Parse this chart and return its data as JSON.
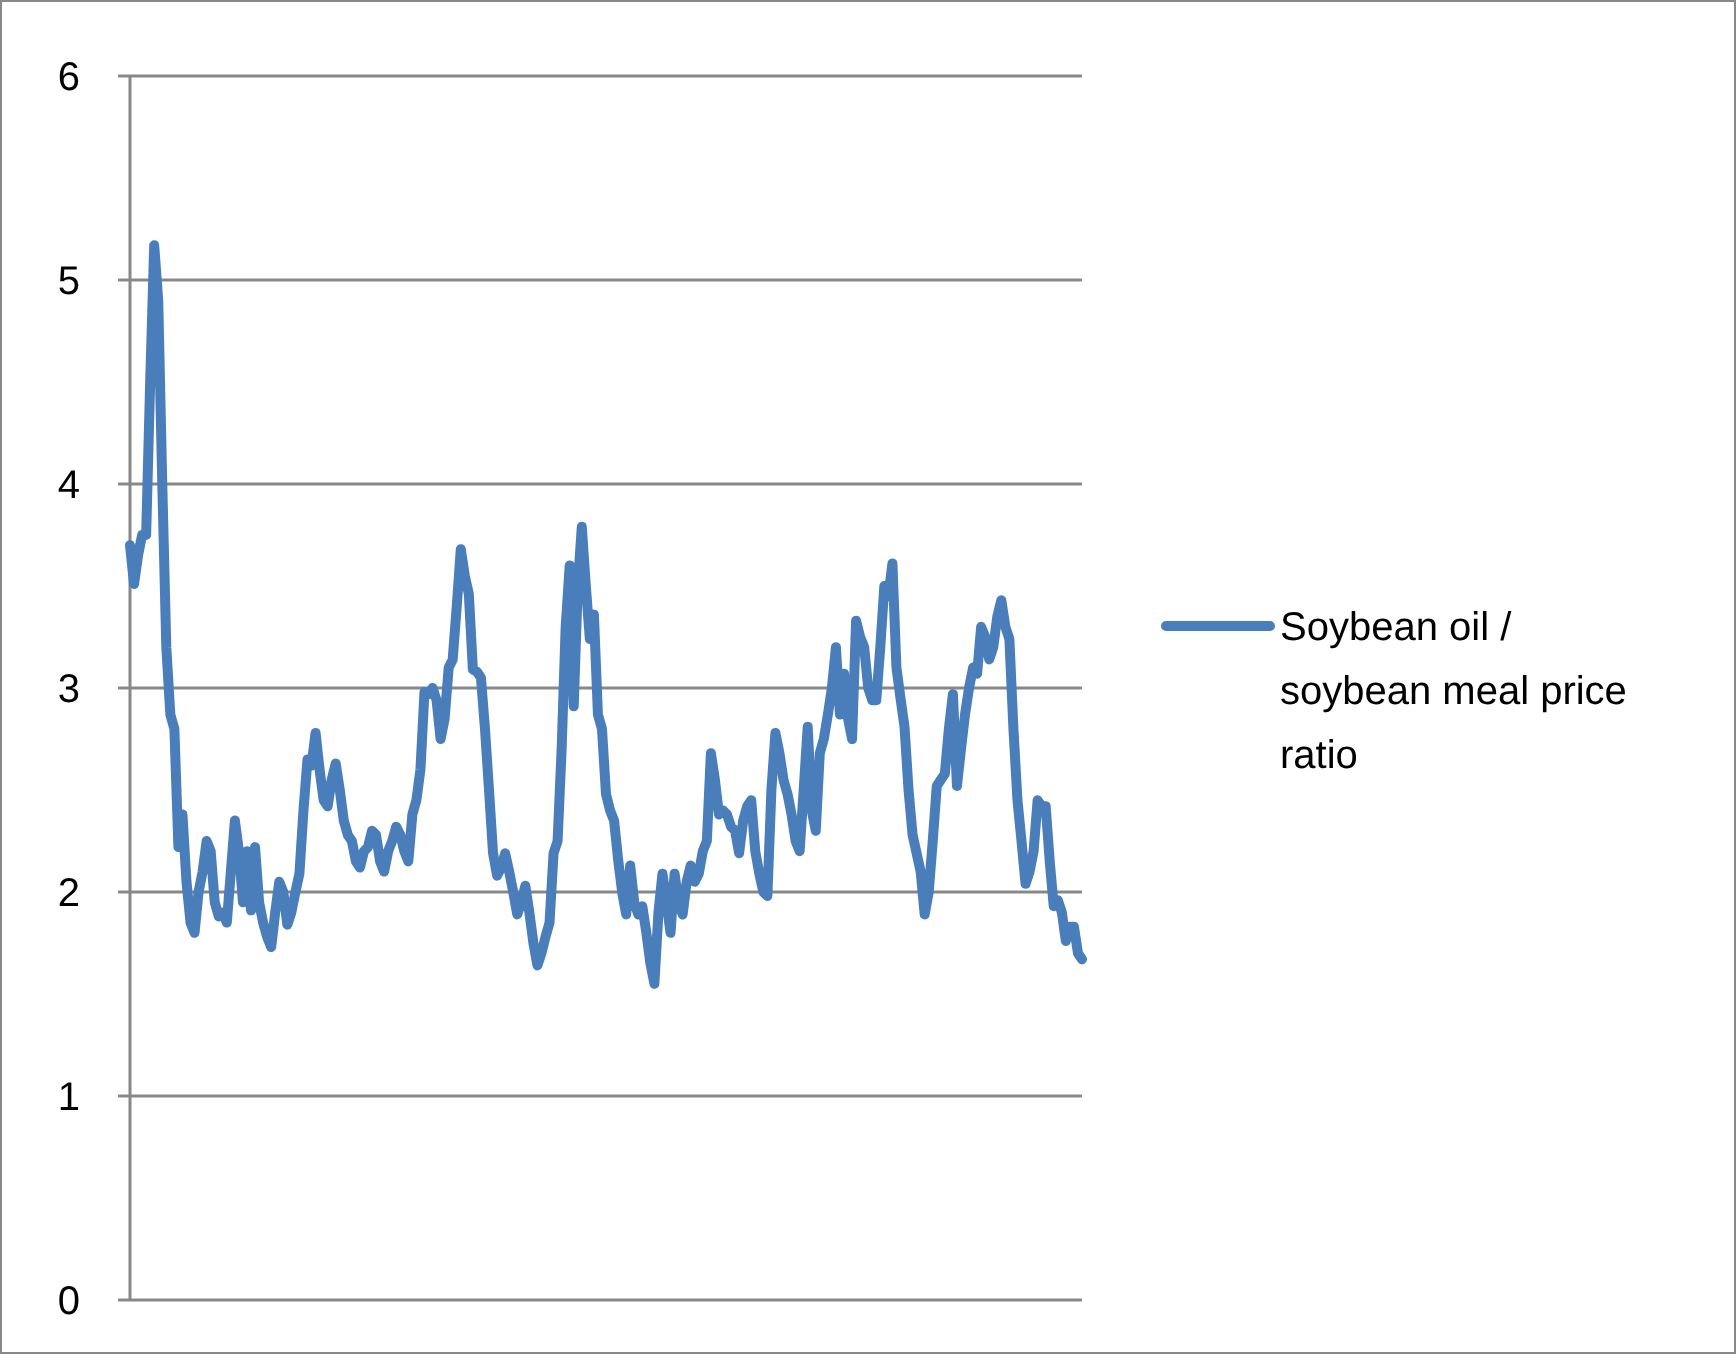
{
  "chart_data": {
    "type": "line",
    "ylim": [
      0,
      6
    ],
    "yticks": [
      0,
      1,
      2,
      3,
      4,
      5,
      6
    ],
    "grid": "y",
    "legend": "right",
    "marker": "none",
    "line_style": "solid",
    "categories": [
      null,
      null,
      null,
      null,
      null,
      null,
      null,
      null,
      null,
      null,
      null,
      null,
      null,
      null,
      null,
      null,
      null,
      null,
      null,
      null,
      null,
      null,
      null,
      null,
      null,
      null,
      null,
      null,
      null,
      null,
      null,
      null,
      null,
      null,
      null,
      null,
      null,
      null,
      null,
      null,
      null,
      null,
      null,
      null,
      null,
      null,
      null,
      null,
      null,
      null,
      null,
      null,
      null,
      null,
      null,
      null,
      null,
      null,
      null,
      null,
      null,
      null,
      null,
      null,
      null,
      null,
      null,
      null,
      null,
      null,
      null,
      null,
      null,
      null,
      null,
      null,
      null,
      null,
      null,
      null,
      null,
      null,
      null,
      null,
      null,
      null,
      null,
      null,
      null,
      null,
      null,
      null,
      null,
      null,
      null,
      null,
      null,
      null,
      null,
      null,
      null,
      null,
      null,
      null,
      null,
      null,
      null,
      null,
      null,
      null,
      null,
      null,
      null,
      null,
      null,
      null,
      null,
      null,
      null,
      null,
      null,
      null,
      null,
      null,
      null,
      null,
      null,
      null,
      null,
      null,
      null,
      null,
      null,
      null,
      null,
      null,
      null,
      null,
      null,
      null,
      null,
      null,
      null,
      null,
      null,
      null,
      null,
      null,
      null,
      null,
      null,
      null,
      null,
      null,
      null,
      null,
      null,
      null,
      null,
      null,
      null,
      null,
      null,
      null,
      null,
      null,
      null,
      null,
      null,
      null,
      null,
      null,
      null,
      null,
      null,
      null,
      null,
      null,
      null,
      null,
      null,
      null,
      null,
      null,
      null,
      null,
      null,
      null,
      null,
      null,
      null,
      null,
      null,
      null,
      null,
      null,
      null,
      null,
      null,
      null,
      null,
      null,
      null,
      null,
      null,
      null,
      null,
      null,
      null,
      null,
      null,
      null,
      null,
      null,
      null,
      null,
      null,
      null,
      null,
      null,
      null,
      null,
      null,
      null,
      null,
      null,
      null,
      null,
      null,
      null,
      null,
      null,
      null,
      null,
      null,
      null,
      null
    ],
    "series": [
      {
        "name": "Soybean oil / soybean meal price ratio",
        "color": "#4a7ebb",
        "values": [
          3.7,
          3.51,
          3.65,
          3.75,
          3.75,
          4.5,
          5.17,
          4.9,
          4.0,
          3.2,
          2.87,
          2.8,
          2.22,
          2.38,
          2.05,
          1.85,
          1.8,
          2.0,
          2.1,
          2.25,
          2.2,
          1.95,
          1.88,
          1.9,
          1.85,
          2.1,
          2.35,
          2.2,
          1.95,
          2.2,
          1.91,
          2.22,
          1.95,
          1.85,
          1.78,
          1.73,
          1.9,
          2.05,
          2.0,
          1.84,
          1.9,
          2.0,
          2.09,
          2.4,
          2.65,
          2.62,
          2.78,
          2.6,
          2.45,
          2.42,
          2.55,
          2.63,
          2.5,
          2.35,
          2.28,
          2.25,
          2.15,
          2.12,
          2.2,
          2.22,
          2.3,
          2.28,
          2.15,
          2.1,
          2.2,
          2.25,
          2.32,
          2.28,
          2.2,
          2.15,
          2.38,
          2.45,
          2.6,
          2.98,
          2.97,
          3.0,
          2.94,
          2.75,
          2.85,
          3.1,
          3.14,
          3.4,
          3.68,
          3.55,
          3.46,
          3.09,
          3.08,
          3.05,
          2.8,
          2.5,
          2.19,
          2.08,
          2.12,
          2.19,
          2.1,
          2.0,
          1.89,
          1.95,
          2.03,
          1.9,
          1.75,
          1.64,
          1.7,
          1.78,
          1.85,
          2.19,
          2.25,
          2.7,
          3.3,
          3.6,
          2.91,
          3.5,
          3.79,
          3.5,
          3.24,
          3.36,
          2.87,
          2.8,
          2.48,
          2.4,
          2.35,
          2.16,
          2.0,
          1.89,
          2.13,
          1.95,
          1.89,
          1.93,
          1.8,
          1.65,
          1.55,
          1.9,
          2.09,
          1.95,
          1.8,
          2.09,
          1.95,
          1.89,
          2.05,
          2.13,
          2.05,
          2.09,
          2.2,
          2.25,
          2.68,
          2.55,
          2.38,
          2.4,
          2.38,
          2.32,
          2.3,
          2.19,
          2.35,
          2.42,
          2.45,
          2.2,
          2.09,
          2.0,
          1.98,
          2.5,
          2.78,
          2.68,
          2.55,
          2.48,
          2.38,
          2.25,
          2.2,
          2.5,
          2.81,
          2.4,
          2.3,
          2.68,
          2.75,
          2.87,
          3.0,
          3.2,
          2.87,
          3.07,
          2.85,
          2.75,
          3.33,
          3.25,
          3.2,
          3.0,
          2.94,
          2.94,
          3.2,
          3.5,
          3.45,
          3.61,
          3.1,
          2.95,
          2.81,
          2.5,
          2.28,
          2.19,
          2.1,
          1.89,
          2.0,
          2.25,
          2.52,
          2.55,
          2.58,
          2.8,
          2.97,
          2.52,
          2.7,
          2.87,
          3.0,
          3.1,
          3.07,
          3.3,
          3.25,
          3.14,
          3.2,
          3.35,
          3.43,
          3.3,
          3.24,
          2.8,
          2.45,
          2.25,
          2.04,
          2.1,
          2.2,
          2.45,
          2.42,
          2.42,
          2.15,
          1.93,
          1.96,
          1.9,
          1.76,
          1.83,
          1.83,
          1.7,
          1.67
        ]
      }
    ]
  }
}
